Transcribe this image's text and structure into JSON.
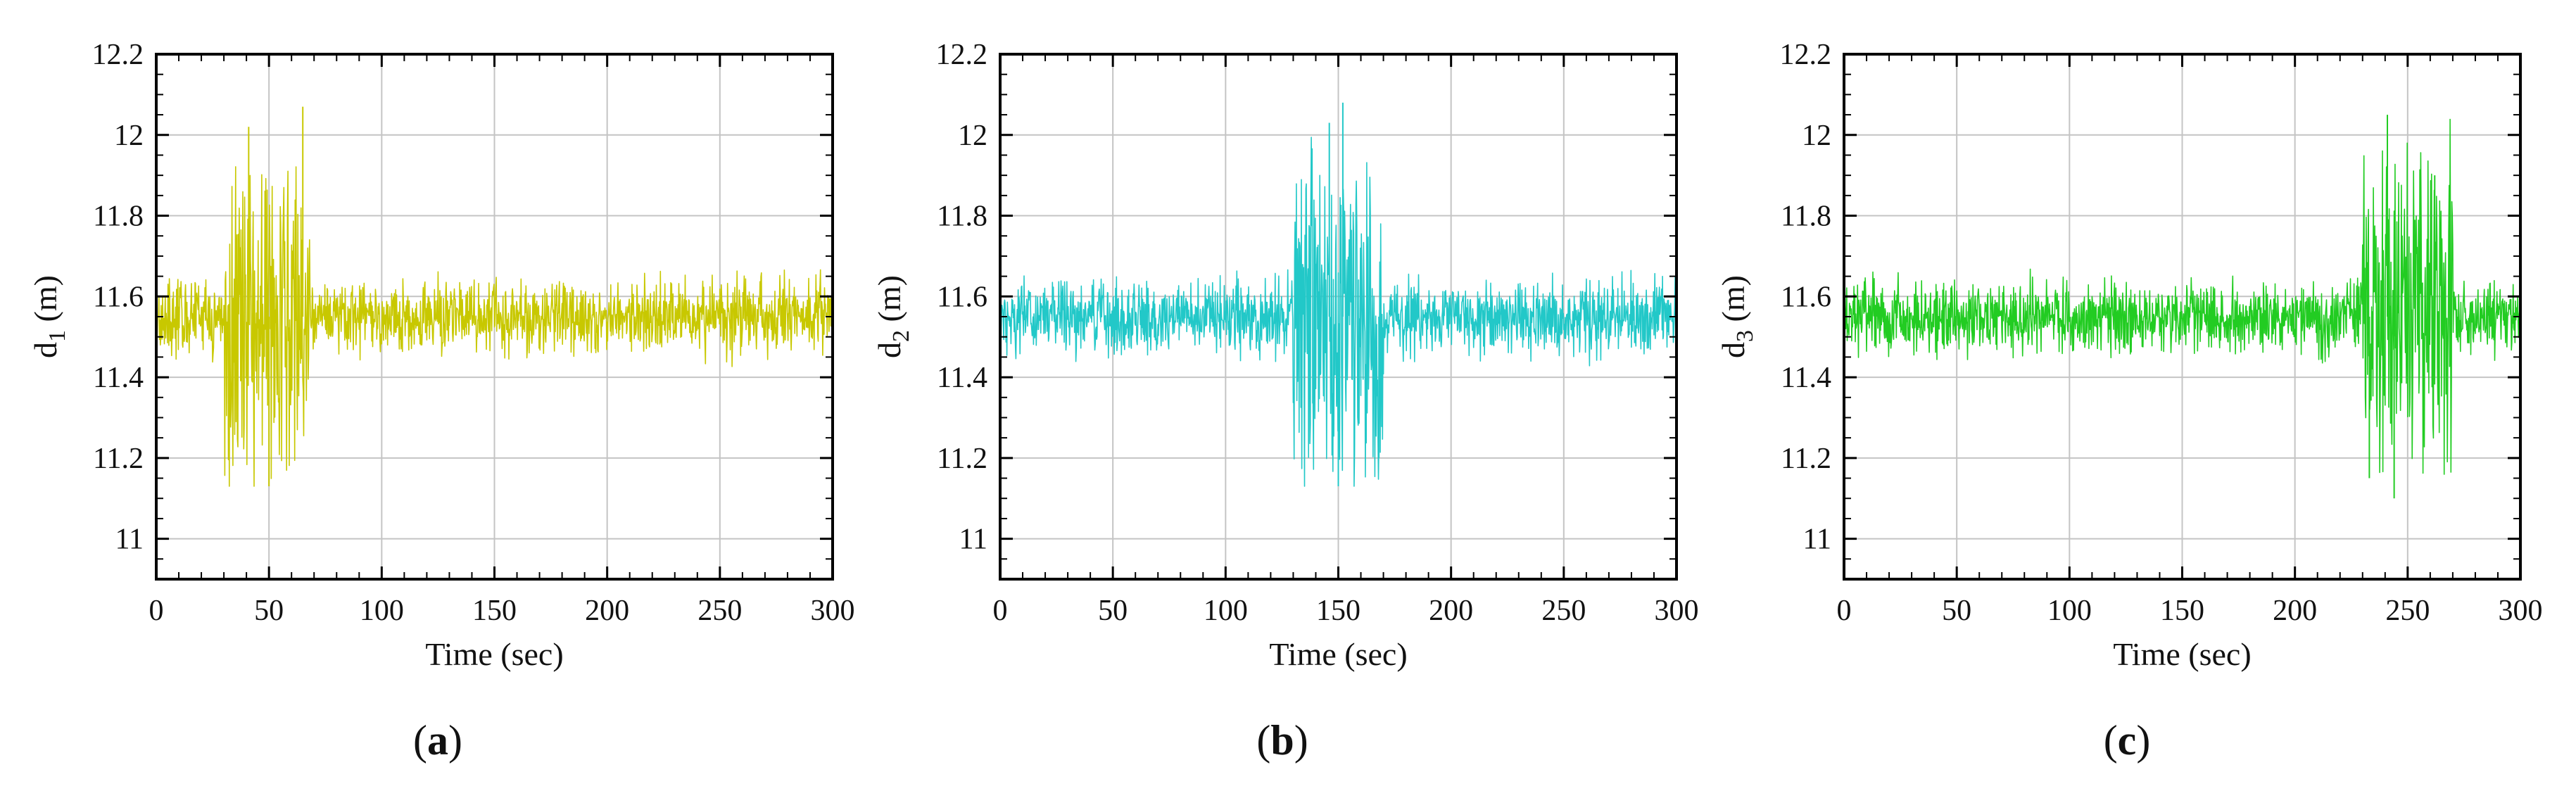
{
  "chart_data": [
    {
      "type": "line",
      "panel_label": "a",
      "xlabel": "Time (sec)",
      "ylabel_main": "d",
      "ylabel_sub": "1",
      "ylabel_unit": " (m)",
      "xlim": [
        0,
        300
      ],
      "ylim": [
        10.9,
        12.2
      ],
      "xticks": [
        0,
        50,
        100,
        150,
        200,
        250,
        300
      ],
      "yticks": [
        11,
        11.2,
        11.4,
        11.6,
        11.8,
        12,
        12.2
      ],
      "grid": true,
      "series": [
        {
          "name": "d1",
          "color": "#c8c800",
          "baseline": 11.55,
          "noise_band": [
            11.45,
            11.65
          ],
          "burst_window": [
            30,
            68
          ],
          "burst_range": [
            11.13,
            12.07
          ],
          "peaks": [
            {
              "t": 41,
              "v": 12.02
            },
            {
              "t": 65,
              "v": 12.07
            }
          ],
          "troughs": [
            {
              "t": 50,
              "v": 11.13
            },
            {
              "t": 32,
              "v": 11.27
            }
          ]
        }
      ]
    },
    {
      "type": "line",
      "panel_label": "b",
      "xlabel": "Time (sec)",
      "ylabel_main": "d",
      "ylabel_sub": "2",
      "ylabel_unit": " (m)",
      "xlim": [
        0,
        300
      ],
      "ylim": [
        10.9,
        12.2
      ],
      "xticks": [
        0,
        50,
        100,
        150,
        200,
        250,
        300
      ],
      "yticks": [
        11,
        11.2,
        11.4,
        11.6,
        11.8,
        12,
        12.2
      ],
      "grid": true,
      "series": [
        {
          "name": "d2",
          "color": "#22c8c8",
          "baseline": 11.55,
          "noise_band": [
            11.45,
            11.65
          ],
          "burst_window": [
            130,
            170
          ],
          "burst_range": [
            11.13,
            12.08
          ],
          "peaks": [
            {
              "t": 152,
              "v": 12.08
            },
            {
              "t": 146,
              "v": 12.03
            }
          ],
          "troughs": [
            {
              "t": 150,
              "v": 11.13
            },
            {
              "t": 168,
              "v": 11.2
            }
          ]
        }
      ]
    },
    {
      "type": "line",
      "panel_label": "c",
      "xlabel": "Time (sec)",
      "ylabel_main": "d",
      "ylabel_sub": "3",
      "ylabel_unit": " (m)",
      "xlim": [
        0,
        300
      ],
      "ylim": [
        10.9,
        12.2
      ],
      "xticks": [
        0,
        50,
        100,
        150,
        200,
        250,
        300
      ],
      "yticks": [
        11,
        11.2,
        11.4,
        11.6,
        11.8,
        12,
        12.2
      ],
      "grid": true,
      "series": [
        {
          "name": "d3",
          "color": "#22cc22",
          "baseline": 11.55,
          "noise_band": [
            11.45,
            11.65
          ],
          "burst_window": [
            230,
            270
          ],
          "burst_range": [
            11.1,
            12.05
          ],
          "peaks": [
            {
              "t": 241,
              "v": 12.05
            },
            {
              "t": 262,
              "v": 11.9
            }
          ],
          "troughs": [
            {
              "t": 244,
              "v": 11.1
            },
            {
              "t": 233,
              "v": 11.15
            }
          ]
        }
      ]
    }
  ]
}
